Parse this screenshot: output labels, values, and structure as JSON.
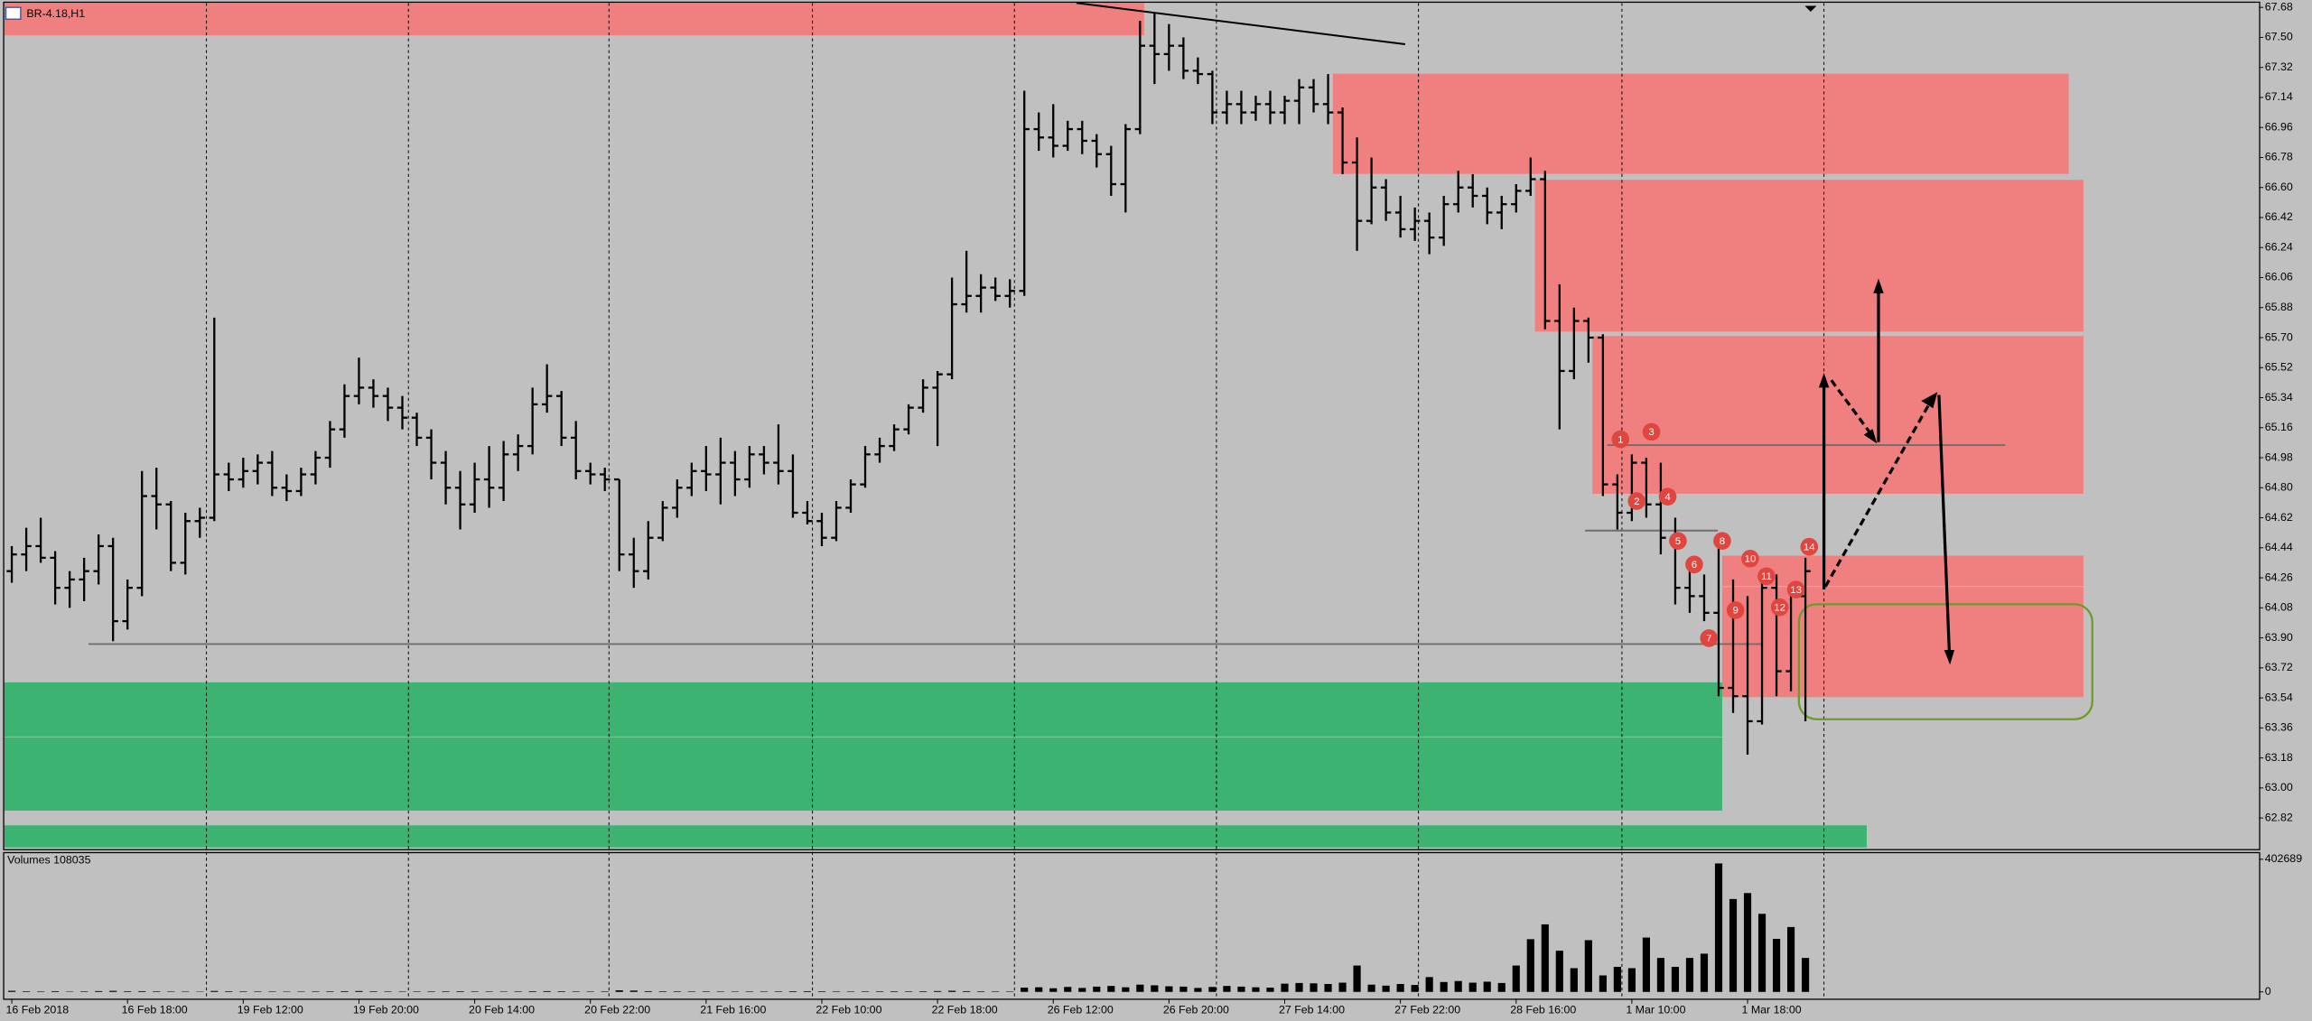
{
  "chart_data": {
    "type": "ohlc",
    "symbol": "BR-4.18,H1",
    "volume_title": "Volumes 108035",
    "color": "#000000",
    "categories": [
      "16 Feb 2018",
      null,
      null,
      null,
      null,
      null,
      null,
      null,
      "16 Feb 18:00",
      null,
      null,
      null,
      null,
      null,
      null,
      null,
      "19 Feb 12:00",
      null,
      null,
      null,
      null,
      null,
      null,
      null,
      "19 Feb 20:00",
      null,
      null,
      null,
      null,
      null,
      null,
      null,
      "20 Feb 14:00",
      null,
      null,
      null,
      null,
      null,
      null,
      null,
      "20 Feb 22:00",
      null,
      null,
      null,
      null,
      null,
      null,
      null,
      "21 Feb 16:00",
      null,
      null,
      null,
      null,
      null,
      null,
      null,
      "22 Feb 10:00",
      null,
      null,
      null,
      null,
      null,
      null,
      null,
      "22 Feb 18:00",
      null,
      null,
      null,
      null,
      null,
      null,
      null,
      "26 Feb 12:00",
      null,
      null,
      null,
      null,
      null,
      null,
      null,
      "26 Feb 20:00",
      null,
      null,
      null,
      null,
      null,
      null,
      null,
      "27 Feb 14:00",
      null,
      null,
      null,
      null,
      null,
      null,
      null,
      "27 Feb 22:00",
      null,
      null,
      null,
      null,
      null,
      null,
      null,
      "28 Feb 16:00",
      null,
      null,
      null,
      null,
      null,
      null,
      null,
      "1 Mar 10:00",
      null,
      null,
      null,
      null,
      null,
      null,
      null,
      "1 Mar 18:00",
      null,
      null,
      null,
      null
    ],
    "ohlc": [
      [
        64.3,
        64.45,
        64.23,
        64.4
      ],
      [
        64.4,
        64.56,
        64.3,
        64.45
      ],
      [
        64.45,
        64.62,
        64.35,
        64.38
      ],
      [
        64.38,
        64.42,
        64.1,
        64.2
      ],
      [
        64.2,
        64.3,
        64.08,
        64.25
      ],
      [
        64.25,
        64.38,
        64.12,
        64.3
      ],
      [
        64.3,
        64.52,
        64.22,
        64.45
      ],
      [
        64.45,
        64.5,
        63.88,
        64.0
      ],
      [
        64.0,
        64.25,
        63.95,
        64.2
      ],
      [
        64.2,
        64.9,
        64.15,
        64.75
      ],
      [
        64.75,
        64.92,
        64.55,
        64.7
      ],
      [
        64.7,
        64.72,
        64.3,
        64.35
      ],
      [
        64.35,
        64.65,
        64.28,
        64.6
      ],
      [
        64.6,
        64.68,
        64.5,
        64.62
      ],
      [
        64.62,
        65.82,
        64.6,
        64.88
      ],
      [
        64.88,
        64.95,
        64.78,
        64.85
      ],
      [
        64.85,
        64.98,
        64.8,
        64.9
      ],
      [
        64.9,
        65.0,
        64.82,
        64.95
      ],
      [
        64.95,
        65.02,
        64.75,
        64.8
      ],
      [
        64.8,
        64.88,
        64.72,
        64.78
      ],
      [
        64.78,
        64.92,
        64.75,
        64.88
      ],
      [
        64.88,
        65.02,
        64.82,
        64.98
      ],
      [
        64.98,
        65.2,
        64.92,
        65.15
      ],
      [
        65.15,
        65.42,
        65.1,
        65.35
      ],
      [
        65.35,
        65.58,
        65.3,
        65.4
      ],
      [
        65.4,
        65.45,
        65.28,
        65.35
      ],
      [
        65.35,
        65.4,
        65.2,
        65.28
      ],
      [
        65.28,
        65.35,
        65.15,
        65.22
      ],
      [
        65.22,
        65.25,
        65.05,
        65.1
      ],
      [
        65.1,
        65.15,
        64.85,
        64.95
      ],
      [
        64.95,
        65.02,
        64.7,
        64.8
      ],
      [
        64.8,
        64.9,
        64.55,
        64.7
      ],
      [
        64.7,
        64.95,
        64.65,
        64.85
      ],
      [
        64.85,
        65.05,
        64.68,
        64.8
      ],
      [
        64.8,
        65.08,
        64.72,
        65.0
      ],
      [
        65.0,
        65.12,
        64.9,
        65.05
      ],
      [
        65.05,
        65.4,
        65.0,
        65.3
      ],
      [
        65.3,
        65.54,
        65.25,
        65.35
      ],
      [
        65.35,
        65.38,
        65.05,
        65.1
      ],
      [
        65.1,
        65.2,
        64.85,
        64.9
      ],
      [
        64.9,
        64.95,
        64.82,
        64.88
      ],
      [
        64.88,
        64.92,
        64.78,
        64.85
      ],
      [
        64.85,
        64.85,
        64.3,
        64.4
      ],
      [
        64.4,
        64.5,
        64.2,
        64.3
      ],
      [
        64.3,
        64.6,
        64.25,
        64.5
      ],
      [
        64.5,
        64.72,
        64.48,
        64.68
      ],
      [
        64.68,
        64.85,
        64.62,
        64.8
      ],
      [
        64.8,
        64.95,
        64.75,
        64.9
      ],
      [
        64.9,
        65.05,
        64.78,
        64.88
      ],
      [
        64.88,
        65.1,
        64.7,
        64.95
      ],
      [
        64.95,
        65.02,
        64.75,
        64.85
      ],
      [
        64.85,
        65.05,
        64.8,
        65.0
      ],
      [
        65.0,
        65.05,
        64.88,
        64.95
      ],
      [
        64.95,
        65.18,
        64.82,
        64.9
      ],
      [
        64.9,
        65.0,
        64.62,
        64.65
      ],
      [
        64.65,
        64.72,
        64.58,
        64.6
      ],
      [
        64.6,
        64.65,
        64.45,
        64.5
      ],
      [
        64.5,
        64.72,
        64.48,
        64.68
      ],
      [
        64.68,
        64.85,
        64.65,
        64.82
      ],
      [
        64.82,
        65.05,
        64.8,
        65.0
      ],
      [
        65.0,
        65.1,
        64.95,
        65.05
      ],
      [
        65.05,
        65.18,
        65.02,
        65.15
      ],
      [
        65.15,
        65.3,
        65.12,
        65.28
      ],
      [
        65.28,
        65.45,
        65.25,
        65.4
      ],
      [
        65.4,
        65.5,
        65.05,
        65.48
      ],
      [
        65.48,
        66.06,
        65.45,
        65.9
      ],
      [
        65.9,
        66.22,
        65.85,
        65.95
      ],
      [
        65.95,
        66.08,
        65.85,
        66.0
      ],
      [
        66.0,
        66.06,
        65.92,
        65.95
      ],
      [
        65.95,
        66.05,
        65.88,
        65.98
      ],
      [
        65.98,
        67.18,
        65.95,
        66.95
      ],
      [
        66.95,
        67.05,
        66.82,
        66.9
      ],
      [
        66.9,
        67.1,
        66.78,
        66.85
      ],
      [
        66.85,
        67.0,
        66.82,
        66.95
      ],
      [
        66.95,
        67.0,
        66.8,
        66.88
      ],
      [
        66.88,
        66.92,
        66.72,
        66.8
      ],
      [
        66.8,
        66.85,
        66.55,
        66.62
      ],
      [
        66.62,
        66.98,
        66.45,
        66.95
      ],
      [
        66.95,
        67.6,
        66.92,
        67.45
      ],
      [
        67.45,
        67.65,
        67.22,
        67.4
      ],
      [
        67.4,
        67.58,
        67.3,
        67.45
      ],
      [
        67.45,
        67.5,
        67.25,
        67.3
      ],
      [
        67.3,
        67.38,
        67.22,
        67.28
      ],
      [
        67.28,
        67.3,
        66.98,
        67.05
      ],
      [
        67.05,
        67.18,
        66.98,
        67.1
      ],
      [
        67.1,
        67.18,
        66.98,
        67.05
      ],
      [
        67.05,
        67.15,
        67.0,
        67.1
      ],
      [
        67.1,
        67.18,
        66.98,
        67.05
      ],
      [
        67.05,
        67.15,
        66.98,
        67.12
      ],
      [
        67.12,
        67.25,
        66.98,
        67.2
      ],
      [
        67.2,
        67.25,
        67.05,
        67.1
      ],
      [
        67.1,
        67.28,
        66.98,
        67.05
      ],
      [
        67.05,
        67.08,
        66.68,
        66.75
      ],
      [
        66.75,
        66.9,
        66.22,
        66.4
      ],
      [
        66.4,
        66.78,
        66.38,
        66.6
      ],
      [
        66.6,
        66.65,
        66.4,
        66.45
      ],
      [
        66.45,
        66.55,
        66.3,
        66.35
      ],
      [
        66.35,
        66.48,
        66.28,
        66.4
      ],
      [
        66.4,
        66.45,
        66.2,
        66.3
      ],
      [
        66.3,
        66.55,
        66.25,
        66.5
      ],
      [
        66.5,
        66.7,
        66.45,
        66.6
      ],
      [
        66.6,
        66.68,
        66.48,
        66.55
      ],
      [
        66.55,
        66.6,
        66.38,
        66.45
      ],
      [
        66.45,
        66.55,
        66.35,
        66.5
      ],
      [
        66.5,
        66.62,
        66.45,
        66.58
      ],
      [
        66.58,
        66.78,
        66.55,
        66.65
      ],
      [
        66.65,
        66.7,
        65.75,
        65.8
      ],
      [
        65.8,
        66.02,
        65.15,
        65.5
      ],
      [
        65.5,
        65.88,
        65.45,
        65.8
      ],
      [
        65.8,
        65.82,
        65.55,
        65.7
      ],
      [
        65.7,
        65.72,
        64.75,
        64.82
      ],
      [
        64.82,
        64.88,
        64.55,
        64.65
      ],
      [
        64.65,
        65.0,
        64.6,
        64.95
      ],
      [
        64.95,
        64.98,
        64.62,
        64.7
      ],
      [
        64.7,
        64.95,
        64.4,
        64.5
      ],
      [
        64.5,
        64.62,
        64.1,
        64.2
      ],
      [
        64.2,
        64.35,
        64.05,
        64.15
      ],
      [
        64.15,
        64.28,
        64.0,
        64.05
      ],
      [
        64.05,
        64.45,
        63.55,
        63.6
      ],
      [
        63.6,
        64.25,
        63.45,
        63.55
      ],
      [
        63.55,
        64.15,
        63.2,
        63.4
      ],
      [
        63.4,
        64.3,
        63.38,
        64.2
      ],
      [
        64.2,
        64.28,
        63.55,
        63.7
      ],
      [
        63.7,
        64.22,
        63.58,
        64.15
      ],
      [
        64.15,
        64.38,
        63.4,
        64.3
      ]
    ],
    "volumes": [
      3200,
      1800,
      1500,
      2100,
      1200,
      1600,
      2400,
      3100,
      1900,
      2200,
      1700,
      1400,
      1300,
      1100,
      2800,
      1900,
      1600,
      1500,
      1400,
      1200,
      1300,
      1500,
      1700,
      2100,
      2600,
      1800,
      1500,
      1300,
      1400,
      1600,
      1700,
      1900,
      1500,
      1400,
      1300,
      1600,
      2000,
      2300,
      1900,
      1500,
      1400,
      1600,
      4800,
      3900,
      2200,
      1800,
      1700,
      1500,
      1600,
      1400,
      1300,
      1500,
      1400,
      1600,
      2000,
      2100,
      1800,
      1500,
      1400,
      1600,
      1700,
      1800,
      1600,
      1900,
      2500,
      3400,
      2200,
      1800,
      1500,
      1400,
      13000,
      14000,
      11000,
      15000,
      12000,
      16000,
      18000,
      14000,
      22000,
      20000,
      17000,
      16000,
      12000,
      15000,
      18000,
      16000,
      14000,
      13000,
      25000,
      27000,
      26000,
      24000,
      28000,
      80000,
      22000,
      19000,
      24000,
      21000,
      45000,
      30000,
      33000,
      28000,
      31000,
      27000,
      80000,
      160000,
      205000,
      125000,
      72000,
      157000,
      50000,
      76000,
      72000,
      165000,
      103000,
      76000,
      103000,
      116000,
      390000,
      282000,
      300000,
      237000,
      161000,
      197000,
      103000
    ],
    "ylim": [
      62.64,
      67.7
    ],
    "yticks": [
      67.68,
      {
        "value": 67.5,
        "label": "67.50"
      },
      67.32,
      67.14,
      66.96,
      66.78,
      {
        "value": 66.6,
        "label": "66.60"
      },
      66.42,
      66.24,
      66.06,
      65.88,
      {
        "value": 65.7,
        "label": "65.70"
      },
      65.52,
      65.34,
      65.16,
      64.98,
      {
        "value": 64.8,
        "label": "64.80"
      },
      64.62,
      64.44,
      64.26,
      64.08,
      {
        "value": 63.9,
        "label": "63.90"
      },
      63.72,
      63.54,
      63.36,
      63.18,
      {
        "value": 63,
        "label": "63.00"
      },
      62.82
    ],
    "volume_ylim": [
      0,
      402689
    ],
    "volume_yticks": [
      0,
      402689
    ],
    "annotations": [
      "1",
      "2",
      "3",
      "4",
      "5",
      "6",
      "7",
      "8",
      "9",
      "10",
      "11",
      "12",
      "13",
      "14"
    ]
  }
}
